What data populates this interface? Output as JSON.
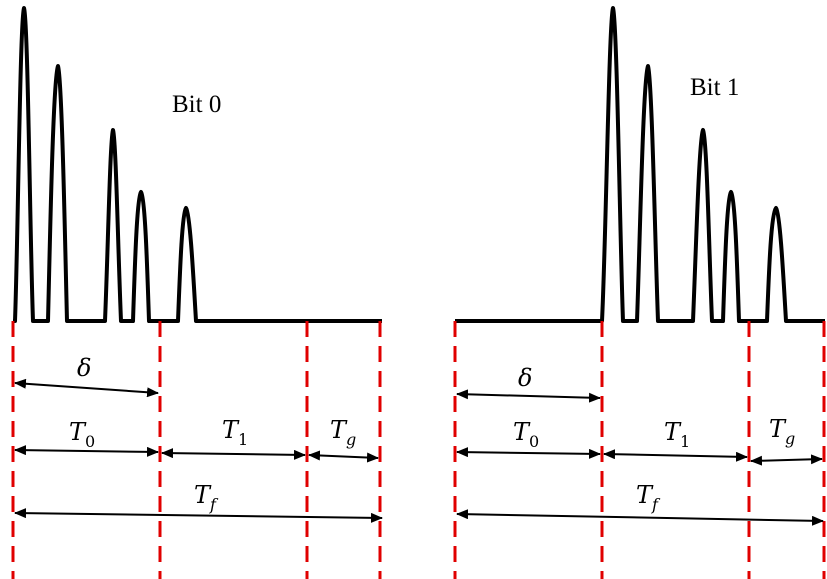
{
  "left_panel": {
    "title": "Bit 0",
    "labels": {
      "delta": "δ",
      "t0": {
        "main": "T",
        "sub": "0"
      },
      "t1": {
        "main": "T",
        "sub": "1"
      },
      "tg": {
        "main": "T",
        "sub": "g"
      },
      "tf": {
        "main": "T",
        "sub": "f"
      }
    }
  },
  "right_panel": {
    "title": "Bit 1",
    "labels": {
      "delta": "δ",
      "t0": {
        "main": "T",
        "sub": "0"
      },
      "t1": {
        "main": "T",
        "sub": "1"
      },
      "tg": {
        "main": "T",
        "sub": "g"
      },
      "tf": {
        "main": "T",
        "sub": "f"
      }
    }
  },
  "colors": {
    "pulse": "#000000",
    "boundary": "#e00000",
    "arrow": "#000000"
  }
}
